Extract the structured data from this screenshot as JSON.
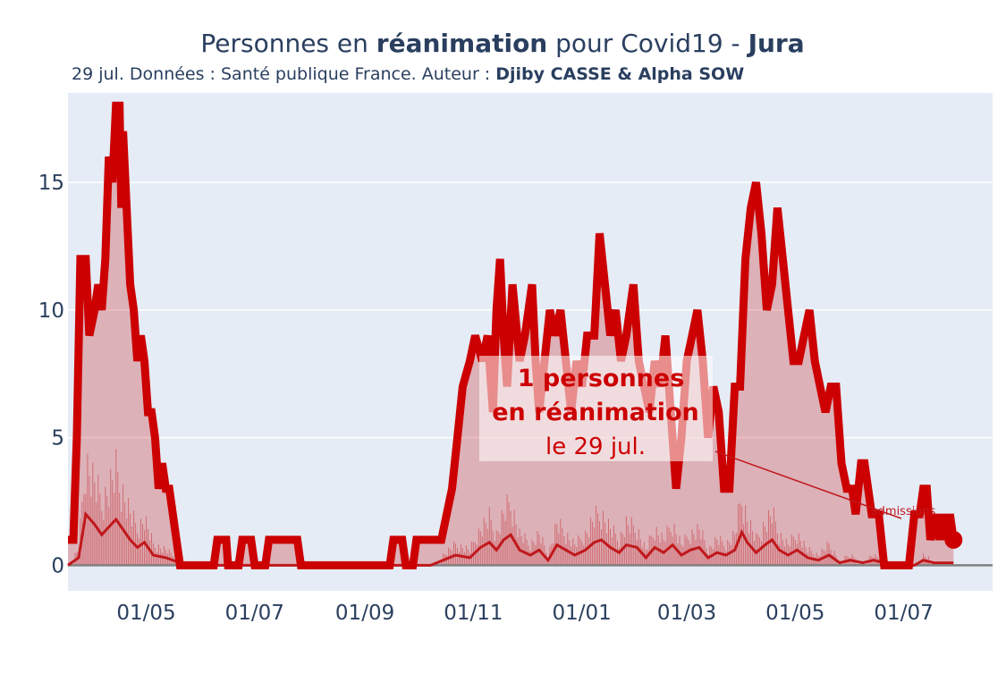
{
  "title": {
    "prefix": "Personnes en ",
    "bold1": "réanimation",
    "middle": " pour Covid19 - ",
    "bold2": "Jura"
  },
  "subtitle": {
    "prefix": "29 jul. Données : Santé publique France. Auteur : ",
    "bold": "Djiby CASSE & Alpha SOW"
  },
  "annotation": {
    "line1": "1 personnes",
    "line2": "en réanimation",
    "line3": "le 29 jul."
  },
  "admissions_label": "admissions",
  "colors": {
    "plot_bg": "#e5ecf6",
    "main_line": "#cc0000",
    "fill": "rgba(201,0,0,0.25)",
    "admissions": "#c0181c",
    "baseline": "#808080",
    "text": "#2a3f5f",
    "annotation_text": "#cc0000"
  },
  "chart_data": {
    "type": "area",
    "xlabel": "",
    "ylabel": "",
    "x_range": [
      "2020-03-18",
      "2021-08-20"
    ],
    "ylim": [
      -1,
      18.5
    ],
    "y_ticks": [
      0,
      5,
      10,
      15
    ],
    "x_ticks": [
      {
        "date": "2020-05-01",
        "label": "01/05"
      },
      {
        "date": "2020-07-01",
        "label": "01/07"
      },
      {
        "date": "2020-09-01",
        "label": "01/09"
      },
      {
        "date": "2020-11-01",
        "label": "01/11"
      },
      {
        "date": "2021-01-01",
        "label": "01/01"
      },
      {
        "date": "2021-03-01",
        "label": "01/03"
      },
      {
        "date": "2021-05-01",
        "label": "01/05"
      },
      {
        "date": "2021-07-01",
        "label": "01/07"
      }
    ],
    "grid": true,
    "series": [
      {
        "key": "reanimation",
        "points": [
          [
            "2020-03-18",
            1
          ],
          [
            "2020-03-21",
            1
          ],
          [
            "2020-03-23",
            5
          ],
          [
            "2020-03-25",
            12
          ],
          [
            "2020-03-28",
            12
          ],
          [
            "2020-03-30",
            9
          ],
          [
            "2020-04-02",
            10
          ],
          [
            "2020-04-04",
            11
          ],
          [
            "2020-04-06",
            10
          ],
          [
            "2020-04-08",
            12
          ],
          [
            "2020-04-10",
            16
          ],
          [
            "2020-04-12",
            15
          ],
          [
            "2020-04-14",
            18
          ],
          [
            "2020-04-16",
            18
          ],
          [
            "2020-04-17",
            14
          ],
          [
            "2020-04-18",
            17
          ],
          [
            "2020-04-20",
            14
          ],
          [
            "2020-04-22",
            11
          ],
          [
            "2020-04-24",
            10
          ],
          [
            "2020-04-26",
            8
          ],
          [
            "2020-04-28",
            9
          ],
          [
            "2020-04-30",
            8
          ],
          [
            "2020-05-02",
            6
          ],
          [
            "2020-05-04",
            6
          ],
          [
            "2020-05-06",
            5
          ],
          [
            "2020-05-08",
            3
          ],
          [
            "2020-05-10",
            4
          ],
          [
            "2020-05-12",
            3
          ],
          [
            "2020-05-14",
            3
          ],
          [
            "2020-05-18",
            1
          ],
          [
            "2020-05-20",
            0
          ],
          [
            "2020-06-08",
            0
          ],
          [
            "2020-06-10",
            1
          ],
          [
            "2020-06-15",
            1
          ],
          [
            "2020-06-16",
            0
          ],
          [
            "2020-06-22",
            0
          ],
          [
            "2020-06-24",
            1
          ],
          [
            "2020-06-29",
            1
          ],
          [
            "2020-07-01",
            0
          ],
          [
            "2020-07-07",
            0
          ],
          [
            "2020-07-09",
            1
          ],
          [
            "2020-07-25",
            1
          ],
          [
            "2020-07-27",
            0
          ],
          [
            "2020-09-15",
            0
          ],
          [
            "2020-09-17",
            1
          ],
          [
            "2020-09-22",
            1
          ],
          [
            "2020-09-24",
            0
          ],
          [
            "2020-09-28",
            0
          ],
          [
            "2020-09-30",
            1
          ],
          [
            "2020-10-14",
            1
          ],
          [
            "2020-10-17",
            2
          ],
          [
            "2020-10-20",
            3
          ],
          [
            "2020-10-23",
            5
          ],
          [
            "2020-10-26",
            7
          ],
          [
            "2020-10-30",
            8
          ],
          [
            "2020-11-02",
            9
          ],
          [
            "2020-11-06",
            8
          ],
          [
            "2020-11-09",
            9
          ],
          [
            "2020-11-12",
            6
          ],
          [
            "2020-11-14",
            10
          ],
          [
            "2020-11-16",
            12
          ],
          [
            "2020-11-18",
            9
          ],
          [
            "2020-11-20",
            7
          ],
          [
            "2020-11-23",
            11
          ],
          [
            "2020-11-27",
            8
          ],
          [
            "2020-11-30",
            9
          ],
          [
            "2020-12-02",
            10
          ],
          [
            "2020-12-04",
            11
          ],
          [
            "2020-12-06",
            8
          ],
          [
            "2020-12-08",
            6
          ],
          [
            "2020-12-11",
            8
          ],
          [
            "2020-12-14",
            10
          ],
          [
            "2020-12-17",
            9
          ],
          [
            "2020-12-20",
            10
          ],
          [
            "2020-12-23",
            8
          ],
          [
            "2020-12-26",
            6
          ],
          [
            "2020-12-29",
            8
          ],
          [
            "2021-01-01",
            7
          ],
          [
            "2021-01-04",
            9
          ],
          [
            "2021-01-08",
            9
          ],
          [
            "2021-01-11",
            13
          ],
          [
            "2021-01-14",
            11
          ],
          [
            "2021-01-17",
            9
          ],
          [
            "2021-01-20",
            10
          ],
          [
            "2021-01-23",
            8
          ],
          [
            "2021-01-26",
            9
          ],
          [
            "2021-01-30",
            11
          ],
          [
            "2021-02-02",
            8
          ],
          [
            "2021-02-05",
            7
          ],
          [
            "2021-02-08",
            6
          ],
          [
            "2021-02-11",
            8
          ],
          [
            "2021-02-14",
            7
          ],
          [
            "2021-02-17",
            9
          ],
          [
            "2021-02-20",
            6
          ],
          [
            "2021-02-23",
            3
          ],
          [
            "2021-02-26",
            5
          ],
          [
            "2021-03-01",
            8
          ],
          [
            "2021-03-04",
            9
          ],
          [
            "2021-03-07",
            10
          ],
          [
            "2021-03-10",
            8
          ],
          [
            "2021-03-13",
            5
          ],
          [
            "2021-03-16",
            7
          ],
          [
            "2021-03-19",
            6
          ],
          [
            "2021-03-22",
            3
          ],
          [
            "2021-03-25",
            3
          ],
          [
            "2021-03-28",
            7
          ],
          [
            "2021-03-31",
            7
          ],
          [
            "2021-04-03",
            12
          ],
          [
            "2021-04-06",
            14
          ],
          [
            "2021-04-09",
            15
          ],
          [
            "2021-04-12",
            13
          ],
          [
            "2021-04-15",
            10
          ],
          [
            "2021-04-18",
            11
          ],
          [
            "2021-04-21",
            14
          ],
          [
            "2021-04-24",
            12
          ],
          [
            "2021-04-27",
            10
          ],
          [
            "2021-04-30",
            8
          ],
          [
            "2021-05-03",
            8
          ],
          [
            "2021-05-06",
            9
          ],
          [
            "2021-05-09",
            10
          ],
          [
            "2021-05-12",
            8
          ],
          [
            "2021-05-15",
            7
          ],
          [
            "2021-05-18",
            6
          ],
          [
            "2021-05-21",
            7
          ],
          [
            "2021-05-24",
            7
          ],
          [
            "2021-05-27",
            4
          ],
          [
            "2021-05-30",
            3
          ],
          [
            "2021-06-02",
            3
          ],
          [
            "2021-06-04",
            2
          ],
          [
            "2021-06-07",
            4
          ],
          [
            "2021-06-09",
            4
          ],
          [
            "2021-06-11",
            3
          ],
          [
            "2021-06-13",
            2
          ],
          [
            "2021-06-15",
            2
          ],
          [
            "2021-06-17",
            2
          ],
          [
            "2021-06-20",
            0
          ],
          [
            "2021-07-04",
            0
          ],
          [
            "2021-07-07",
            2
          ],
          [
            "2021-07-10",
            2
          ],
          [
            "2021-07-12",
            3
          ],
          [
            "2021-07-14",
            3
          ],
          [
            "2021-07-16",
            1
          ],
          [
            "2021-07-19",
            2
          ],
          [
            "2021-07-21",
            1
          ],
          [
            "2021-07-23",
            2
          ],
          [
            "2021-07-25",
            1
          ],
          [
            "2021-07-27",
            2
          ],
          [
            "2021-07-29",
            1
          ]
        ]
      },
      {
        "key": "admissions_smoothed",
        "points": [
          [
            "2020-03-18",
            0
          ],
          [
            "2020-03-24",
            0.3
          ],
          [
            "2020-03-28",
            2
          ],
          [
            "2020-04-02",
            1.6
          ],
          [
            "2020-04-06",
            1.2
          ],
          [
            "2020-04-10",
            1.5
          ],
          [
            "2020-04-14",
            1.8
          ],
          [
            "2020-04-18",
            1.4
          ],
          [
            "2020-04-22",
            1.0
          ],
          [
            "2020-04-26",
            0.7
          ],
          [
            "2020-04-30",
            0.9
          ],
          [
            "2020-05-05",
            0.4
          ],
          [
            "2020-05-12",
            0.3
          ],
          [
            "2020-05-20",
            0.1
          ],
          [
            "2020-05-26",
            0
          ],
          [
            "2020-10-08",
            0
          ],
          [
            "2020-10-15",
            0.2
          ],
          [
            "2020-10-22",
            0.4
          ],
          [
            "2020-10-30",
            0.3
          ],
          [
            "2020-11-05",
            0.7
          ],
          [
            "2020-11-10",
            0.9
          ],
          [
            "2020-11-14",
            0.6
          ],
          [
            "2020-11-18",
            1.0
          ],
          [
            "2020-11-22",
            1.2
          ],
          [
            "2020-11-27",
            0.6
          ],
          [
            "2020-12-03",
            0.4
          ],
          [
            "2020-12-08",
            0.6
          ],
          [
            "2020-12-13",
            0.2
          ],
          [
            "2020-12-18",
            0.8
          ],
          [
            "2020-12-23",
            0.6
          ],
          [
            "2020-12-28",
            0.4
          ],
          [
            "2021-01-03",
            0.6
          ],
          [
            "2021-01-08",
            0.9
          ],
          [
            "2021-01-12",
            1.0
          ],
          [
            "2021-01-17",
            0.7
          ],
          [
            "2021-01-22",
            0.5
          ],
          [
            "2021-01-26",
            0.8
          ],
          [
            "2021-02-01",
            0.7
          ],
          [
            "2021-02-06",
            0.3
          ],
          [
            "2021-02-11",
            0.7
          ],
          [
            "2021-02-16",
            0.5
          ],
          [
            "2021-02-21",
            0.8
          ],
          [
            "2021-02-26",
            0.4
          ],
          [
            "2021-03-03",
            0.6
          ],
          [
            "2021-03-08",
            0.7
          ],
          [
            "2021-03-13",
            0.3
          ],
          [
            "2021-03-18",
            0.5
          ],
          [
            "2021-03-23",
            0.4
          ],
          [
            "2021-03-28",
            0.6
          ],
          [
            "2021-04-01",
            1.3
          ],
          [
            "2021-04-04",
            0.9
          ],
          [
            "2021-04-09",
            0.5
          ],
          [
            "2021-04-14",
            0.8
          ],
          [
            "2021-04-18",
            1.0
          ],
          [
            "2021-04-22",
            0.6
          ],
          [
            "2021-04-27",
            0.4
          ],
          [
            "2021-05-02",
            0.6
          ],
          [
            "2021-05-08",
            0.3
          ],
          [
            "2021-05-14",
            0.2
          ],
          [
            "2021-05-20",
            0.4
          ],
          [
            "2021-05-26",
            0.1
          ],
          [
            "2021-06-01",
            0.2
          ],
          [
            "2021-06-08",
            0.1
          ],
          [
            "2021-06-14",
            0.2
          ],
          [
            "2021-06-20",
            0.1
          ],
          [
            "2021-06-30",
            0
          ],
          [
            "2021-07-07",
            0
          ],
          [
            "2021-07-12",
            0.2
          ],
          [
            "2021-07-18",
            0.1
          ],
          [
            "2021-07-29",
            0.1
          ]
        ]
      }
    ]
  }
}
